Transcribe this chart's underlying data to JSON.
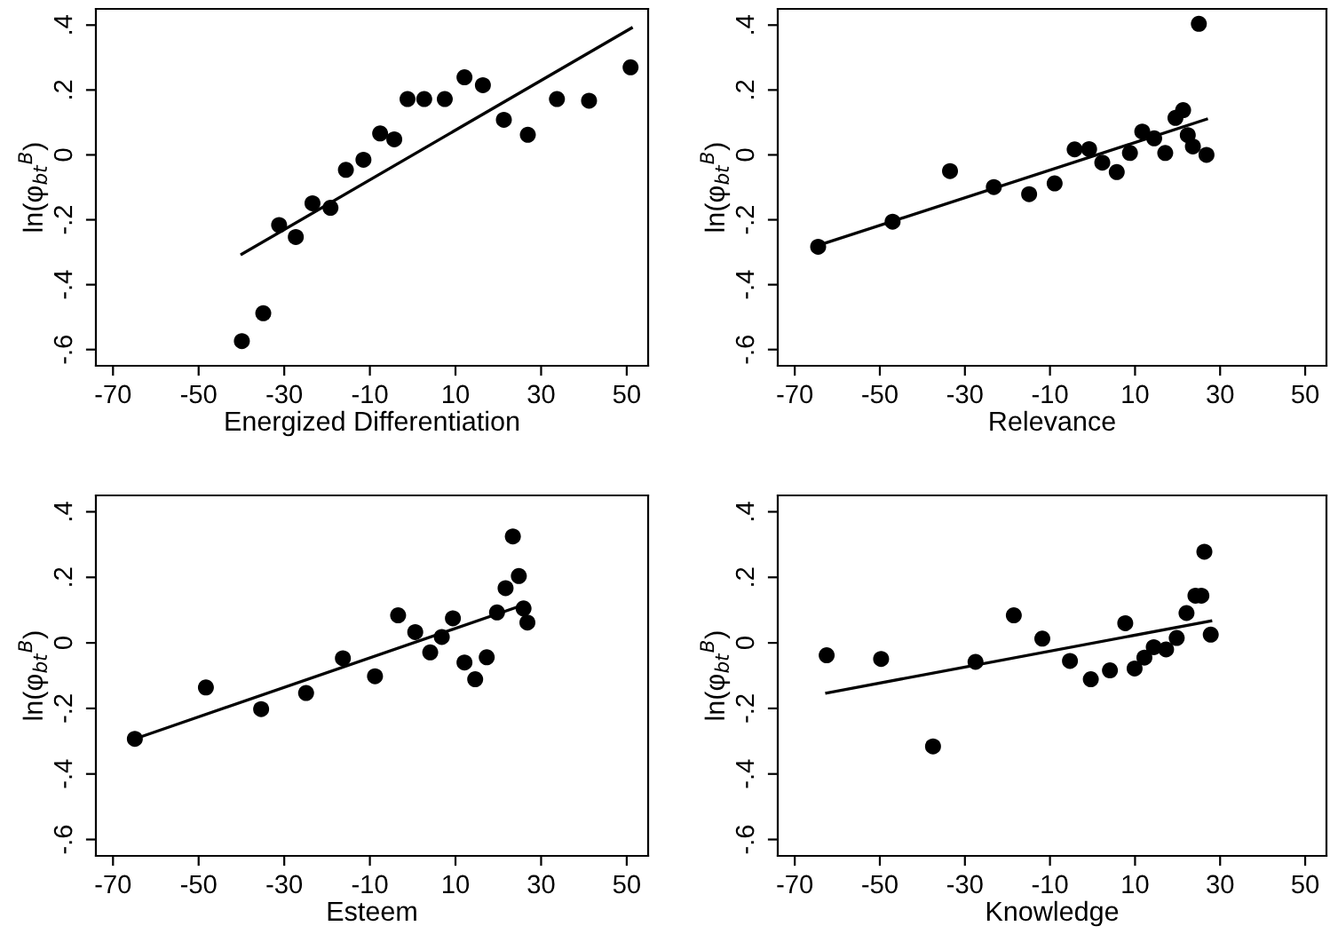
{
  "chart_data": [
    {
      "type": "scatter",
      "xlabel": "Energized Differentiation",
      "ylabel": "ln(φ$_{bt}$$^{B}$)",
      "xlim": [
        -74,
        55
      ],
      "ylim": [
        -0.65,
        0.45
      ],
      "xticks": [
        -70,
        -50,
        -30,
        -10,
        10,
        30,
        50
      ],
      "yticks": [
        {
          "value": -0.6,
          "label": "-.6"
        },
        {
          "value": -0.4,
          "label": "-.4"
        },
        {
          "value": -0.2,
          "label": "-.2"
        },
        {
          "value": 0,
          "label": "0"
        },
        {
          "value": 0.2,
          "label": ".2"
        },
        {
          "value": 0.4,
          "label": ".4"
        }
      ],
      "grid": false,
      "series": [
        {
          "marker": "circle",
          "color": "#000000",
          "x": [
            -39.9,
            -34.9,
            -31.2,
            -27.3,
            -23.4,
            -19.2,
            -15.6,
            -11.5,
            -7.6,
            -4.3,
            -1.2,
            2.7,
            7.5,
            12.1,
            16.4,
            21.3,
            26.9,
            33.7,
            41.2,
            50.9
          ],
          "values": [
            -0.574,
            -0.488,
            -0.216,
            -0.253,
            -0.149,
            -0.163,
            -0.046,
            -0.015,
            0.066,
            0.048,
            0.172,
            0.172,
            0.172,
            0.239,
            0.215,
            0.108,
            0.062,
            0.172,
            0.167,
            0.27
          ]
        },
        {
          "type": "line",
          "color": "#000000",
          "x": [
            -39.9,
            51.1
          ],
          "values": [
            -0.306,
            0.391
          ]
        }
      ]
    },
    {
      "type": "scatter",
      "xlabel": "Relevance",
      "ylabel": "ln(φ$_{bt}$$^{B}$)",
      "xlim": [
        -74,
        55
      ],
      "ylim": [
        -0.65,
        0.45
      ],
      "xticks": [
        -70,
        -50,
        -30,
        -10,
        10,
        30,
        50
      ],
      "yticks": [
        {
          "value": -0.6,
          "label": "-.6"
        },
        {
          "value": -0.4,
          "label": "-.4"
        },
        {
          "value": -0.2,
          "label": "-.2"
        },
        {
          "value": 0,
          "label": "0"
        },
        {
          "value": 0.2,
          "label": ".2"
        },
        {
          "value": 0.4,
          "label": ".4"
        }
      ],
      "grid": false,
      "series": [
        {
          "marker": "circle",
          "color": "#000000",
          "x": [
            -64.5,
            -47.0,
            -33.5,
            -23.2,
            -14.9,
            -8.9,
            -4.2,
            -0.8,
            2.3,
            5.7,
            8.8,
            11.7,
            14.5,
            17.1,
            19.5,
            21.3,
            22.4,
            23.6,
            25.0,
            26.8
          ],
          "values": [
            -0.283,
            -0.206,
            -0.05,
            -0.099,
            -0.121,
            -0.088,
            0.017,
            0.018,
            -0.024,
            -0.053,
            0.006,
            0.072,
            0.051,
            0.006,
            0.114,
            0.138,
            0.061,
            0.026,
            0.404,
            0.0
          ]
        },
        {
          "type": "line",
          "color": "#000000",
          "x": [
            -64.5,
            26.8
          ],
          "values": [
            -0.279,
            0.11
          ]
        }
      ]
    },
    {
      "type": "scatter",
      "xlabel": "Esteem",
      "ylabel": "ln(φ$_{bt}$$^{B}$)",
      "xlim": [
        -74,
        55
      ],
      "ylim": [
        -0.65,
        0.45
      ],
      "xticks": [
        -70,
        -50,
        -30,
        -10,
        10,
        30,
        50
      ],
      "yticks": [
        {
          "value": -0.6,
          "label": "-.6"
        },
        {
          "value": -0.4,
          "label": "-.4"
        },
        {
          "value": -0.2,
          "label": "-.2"
        },
        {
          "value": 0,
          "label": "0"
        },
        {
          "value": 0.2,
          "label": ".2"
        },
        {
          "value": 0.4,
          "label": ".4"
        }
      ],
      "grid": false,
      "series": [
        {
          "marker": "circle",
          "color": "#000000",
          "x": [
            -64.9,
            -48.3,
            -35.4,
            -24.9,
            -16.3,
            -8.8,
            -3.4,
            0.6,
            4.1,
            6.8,
            9.4,
            12.1,
            14.6,
            17.3,
            19.7,
            21.7,
            23.4,
            24.8,
            25.9,
            26.8
          ],
          "values": [
            -0.293,
            -0.136,
            -0.202,
            -0.153,
            -0.047,
            -0.102,
            0.084,
            0.033,
            -0.029,
            0.018,
            0.075,
            -0.06,
            -0.111,
            -0.044,
            0.093,
            0.167,
            0.325,
            0.204,
            0.105,
            0.062
          ]
        },
        {
          "type": "line",
          "color": "#000000",
          "x": [
            -64.9,
            25.9
          ],
          "values": [
            -0.293,
            0.116
          ]
        }
      ]
    },
    {
      "type": "scatter",
      "xlabel": "Knowledge",
      "ylabel": "ln(φ$_{bt}$$^{B}$)",
      "xlim": [
        -74,
        55
      ],
      "ylim": [
        -0.65,
        0.45
      ],
      "xticks": [
        -70,
        -50,
        -30,
        -10,
        10,
        30,
        50
      ],
      "yticks": [
        {
          "value": -0.6,
          "label": "-.6"
        },
        {
          "value": -0.4,
          "label": "-.4"
        },
        {
          "value": -0.2,
          "label": "-.2"
        },
        {
          "value": 0,
          "label": "0"
        },
        {
          "value": 0.2,
          "label": ".2"
        },
        {
          "value": 0.4,
          "label": ".4"
        }
      ],
      "grid": false,
      "series": [
        {
          "marker": "circle",
          "color": "#000000",
          "x": [
            -62.5,
            -49.7,
            -37.5,
            -27.5,
            -18.5,
            -11.8,
            -5.3,
            -0.4,
            4.1,
            7.7,
            9.9,
            12.2,
            14.4,
            17.3,
            19.8,
            22.1,
            24.2,
            25.6,
            26.3,
            27.8
          ],
          "values": [
            -0.038,
            -0.049,
            -0.316,
            -0.058,
            0.084,
            0.013,
            -0.055,
            -0.111,
            -0.084,
            0.06,
            -0.078,
            -0.045,
            -0.013,
            -0.02,
            0.015,
            0.091,
            0.144,
            0.144,
            0.278,
            0.025
          ]
        },
        {
          "type": "line",
          "color": "#000000",
          "x": [
            -62.5,
            27.8
          ],
          "values": [
            -0.153,
            0.067
          ]
        }
      ]
    }
  ]
}
